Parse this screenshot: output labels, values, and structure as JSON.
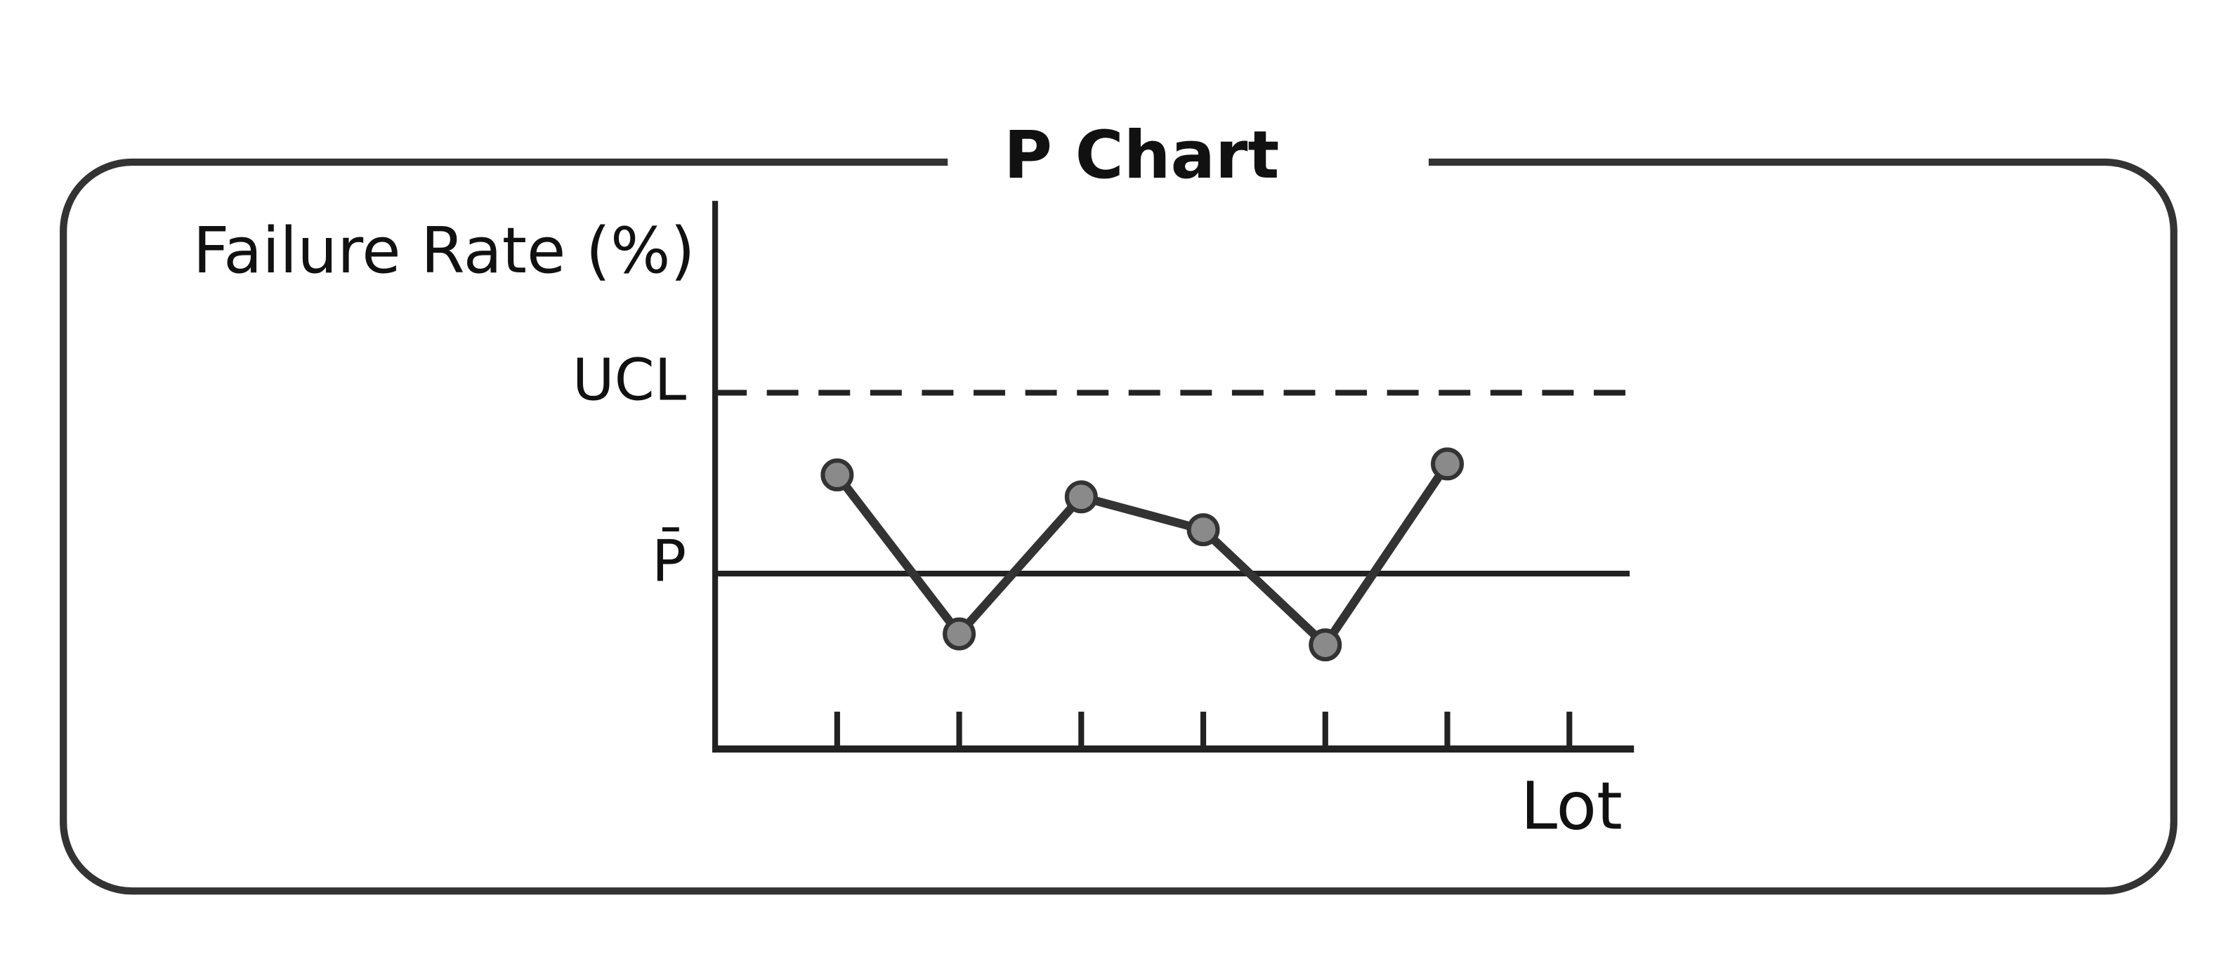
{
  "chart_data": {
    "type": "line",
    "title": "P Chart",
    "y_label": "Failure Rate (%)",
    "x_label": "Lot",
    "categories": [
      null,
      null,
      null,
      null,
      null,
      null,
      null
    ],
    "values": [
      50,
      21,
      46,
      40,
      19,
      52,
      null
    ],
    "color": "#333333",
    "marker_color": "#8a8a8a",
    "ylim": [
      0,
      100
    ],
    "yticks": [
      {
        "value": 65,
        "label": "UCL"
      },
      {
        "value": 32,
        "label": "P̄"
      }
    ],
    "ytick_line_styles": [
      "dashed",
      "solid"
    ]
  }
}
